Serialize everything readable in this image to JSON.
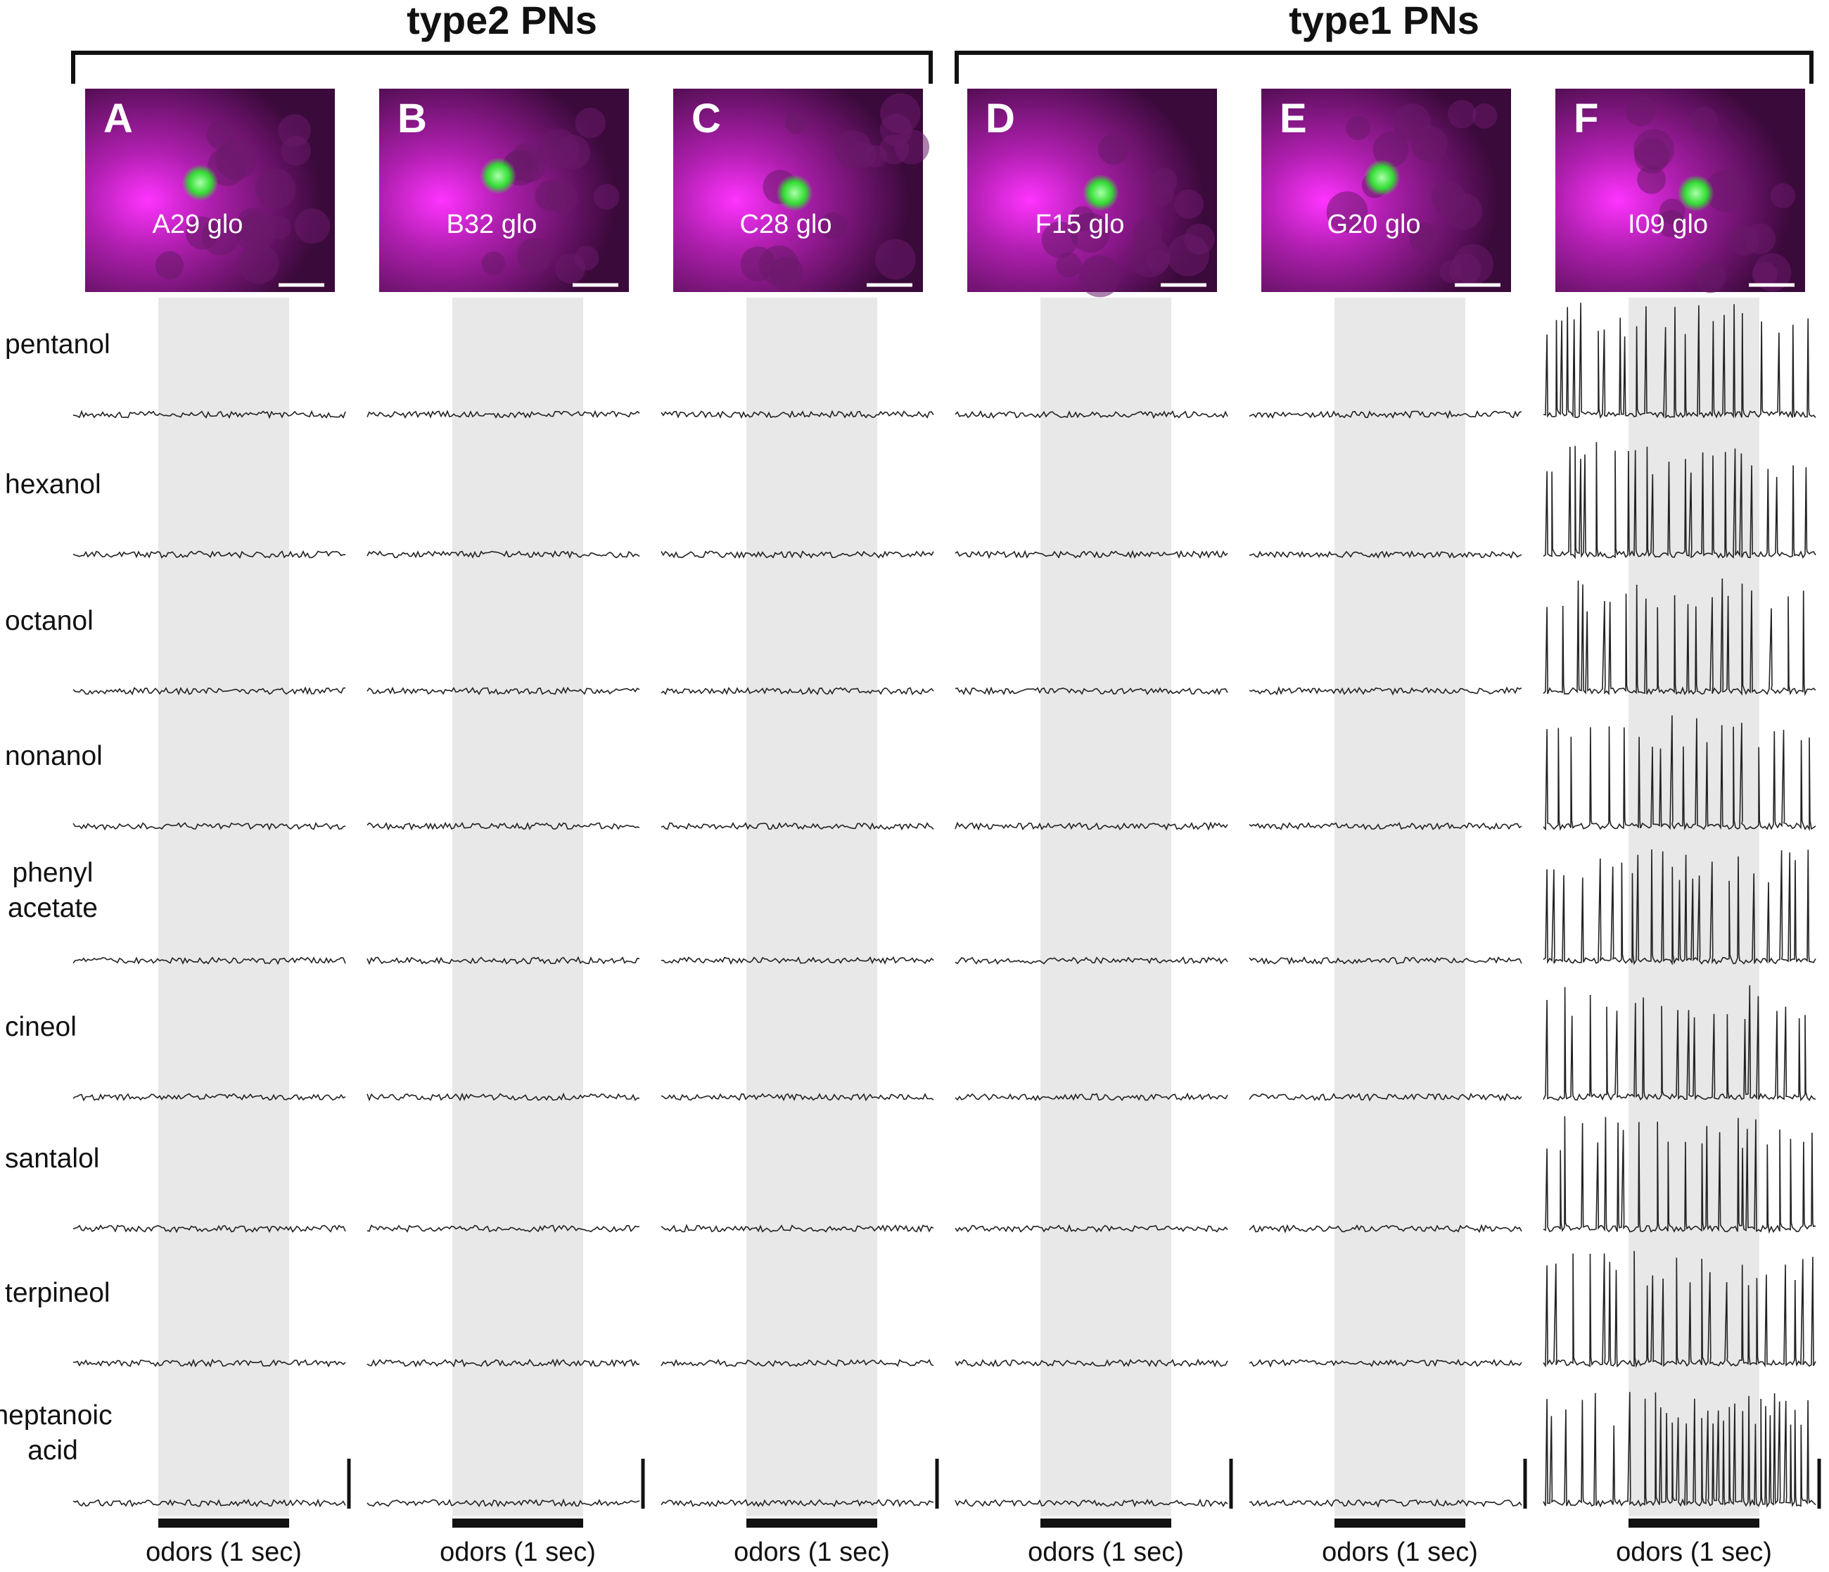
{
  "header": {
    "groups": [
      "type2 PNs",
      "type1 PNs"
    ]
  },
  "panels": [
    {
      "letter": "A",
      "label": "A29 glo"
    },
    {
      "letter": "B",
      "label": "B32 glo"
    },
    {
      "letter": "C",
      "label": "C28 glo"
    },
    {
      "letter": "D",
      "label": "F15 glo"
    },
    {
      "letter": "E",
      "label": "G20 glo"
    },
    {
      "letter": "F",
      "label": "I09 glo"
    }
  ],
  "odors": [
    [
      "pentanol"
    ],
    [
      "hexanol"
    ],
    [
      "octanol"
    ],
    [
      "nonanol"
    ],
    [
      "phenyl",
      "acetate"
    ],
    [
      "cineol"
    ],
    [
      "santalol"
    ],
    [
      "terpineol"
    ],
    [
      "heptanoic",
      "acid"
    ]
  ],
  "stimulus_label": "odors (1 sec)"
}
